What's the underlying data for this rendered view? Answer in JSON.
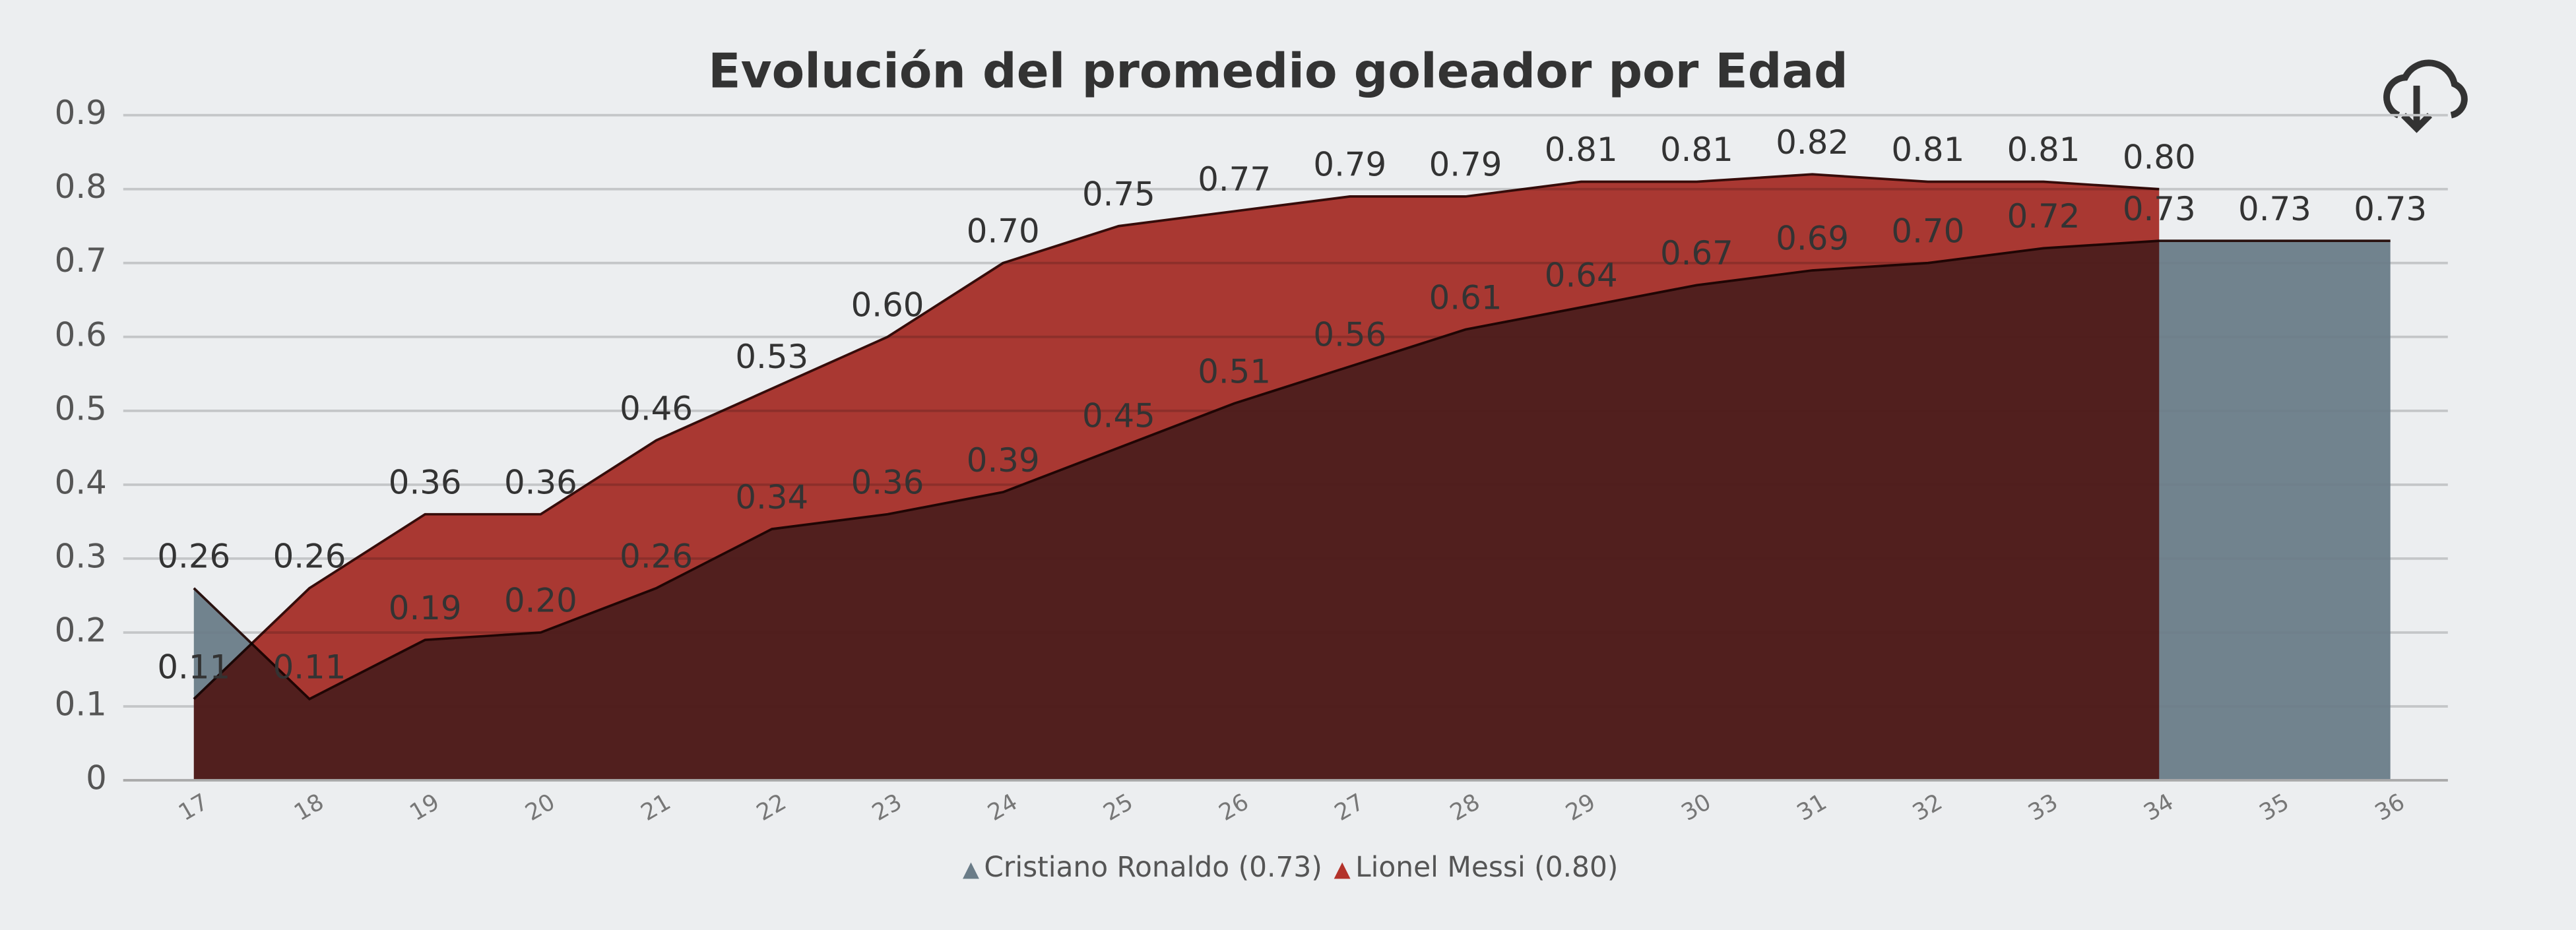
{
  "chart_data": {
    "type": "area",
    "title": "Evolución del promedio goleador por Edad",
    "categories": [
      "17",
      "18",
      "19",
      "20",
      "21",
      "22",
      "23",
      "24",
      "25",
      "26",
      "27",
      "28",
      "29",
      "30",
      "31",
      "32",
      "33",
      "34",
      "35",
      "36"
    ],
    "ylim": [
      0,
      0.9
    ],
    "yticks": [
      0,
      0.1,
      0.2,
      0.3,
      0.4,
      0.5,
      0.6,
      0.7,
      0.8,
      0.9
    ],
    "grid": true,
    "legend": "bottom",
    "series": [
      {
        "name": "Cristiano Ronaldo (0.73)",
        "color": "#6a7c88",
        "values": [
          0.26,
          0.11,
          0.19,
          0.2,
          0.26,
          0.34,
          0.36,
          0.39,
          0.45,
          0.51,
          0.56,
          0.61,
          0.64,
          0.67,
          0.69,
          0.7,
          0.72,
          0.73,
          0.73,
          0.73
        ],
        "value_labels": [
          "0.26",
          "0.11",
          "0.19",
          "0.20",
          "0.26",
          "0.34",
          "0.36",
          "0.39",
          "0.45",
          "0.51",
          "0.56",
          "0.61",
          "0.64",
          "0.67",
          "0.69",
          "0.70",
          "0.72",
          "0.73",
          "0.73",
          "0.73"
        ]
      },
      {
        "name": "Lionel Messi (0.80)",
        "color": "#b3322a",
        "values": [
          0.11,
          0.26,
          0.36,
          0.36,
          0.46,
          0.53,
          0.6,
          0.7,
          0.75,
          0.77,
          0.79,
          0.79,
          0.81,
          0.81,
          0.82,
          0.81,
          0.81,
          0.8,
          null,
          null
        ],
        "value_labels": [
          "0.11",
          "0.26",
          "0.36",
          "0.36",
          "0.46",
          "0.53",
          "0.60",
          "0.70",
          "0.75",
          "0.77",
          "0.79",
          "0.79",
          "0.81",
          "0.81",
          "0.82",
          "0.81",
          "0.81",
          "0.80",
          null,
          null
        ]
      }
    ]
  }
}
